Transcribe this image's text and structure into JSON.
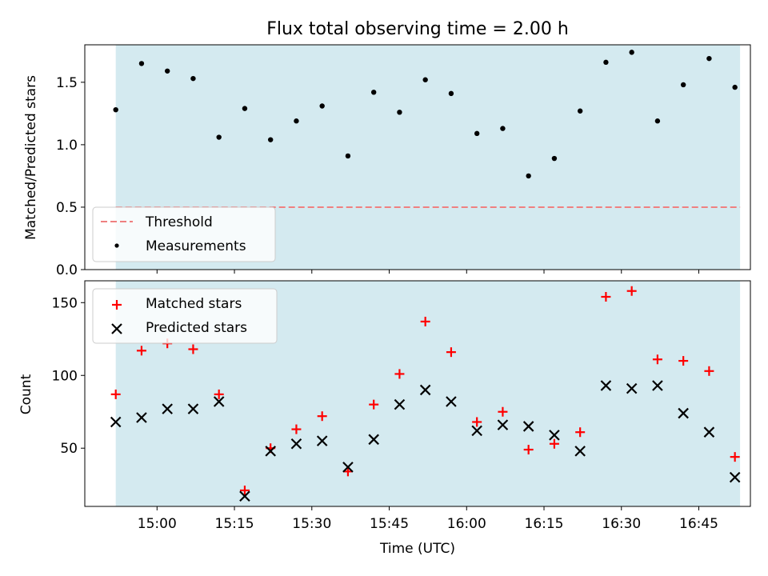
{
  "chart_data": [
    {
      "type": "scatter",
      "title": "Flux total observing time = 2.00 h",
      "xlabel": "",
      "ylabel": "Matched/Predicted stars",
      "ylim": [
        0,
        1.8
      ],
      "yticks": [
        "0.0",
        "0.5",
        "1.0",
        "1.5"
      ],
      "shaded_span": [
        "14:52",
        "16:53"
      ],
      "threshold": 0.5,
      "legend": {
        "position": "lower-left",
        "entries": [
          "Threshold",
          "Measurements"
        ]
      },
      "series": [
        {
          "name": "Measurements",
          "x": [
            "14:52",
            "14:57",
            "15:02",
            "15:07",
            "15:12",
            "15:17",
            "15:22",
            "15:27",
            "15:32",
            "15:37",
            "15:42",
            "15:47",
            "15:52",
            "15:57",
            "16:02",
            "16:07",
            "16:12",
            "16:17",
            "16:22",
            "16:27",
            "16:32",
            "16:37",
            "16:42",
            "16:47",
            "16:52"
          ],
          "values": [
            1.28,
            1.65,
            1.59,
            1.53,
            1.06,
            1.29,
            1.04,
            1.19,
            1.31,
            0.91,
            1.42,
            1.26,
            1.52,
            1.41,
            1.09,
            1.13,
            0.75,
            0.89,
            1.27,
            1.66,
            1.74,
            1.19,
            1.48,
            1.69,
            1.46
          ]
        }
      ]
    },
    {
      "type": "scatter",
      "title": "",
      "xlabel": "Time (UTC)",
      "ylabel": "Count",
      "ylim": [
        10,
        165
      ],
      "yticks": [
        "50",
        "100",
        "150"
      ],
      "xticks": [
        "15:00",
        "15:15",
        "15:30",
        "15:45",
        "16:00",
        "16:15",
        "16:30",
        "16:45"
      ],
      "xlim": [
        "14:46",
        "16:55"
      ],
      "legend": {
        "position": "top-left",
        "entries": [
          "Matched stars",
          "Predicted stars"
        ]
      },
      "series": [
        {
          "name": "Matched stars",
          "x": [
            "14:52",
            "14:57",
            "15:02",
            "15:07",
            "15:12",
            "15:17",
            "15:22",
            "15:27",
            "15:32",
            "15:37",
            "15:42",
            "15:47",
            "15:52",
            "15:57",
            "16:02",
            "16:07",
            "16:12",
            "16:17",
            "16:22",
            "16:27",
            "16:32",
            "16:37",
            "16:42",
            "16:47",
            "16:52"
          ],
          "values": [
            87,
            117,
            122,
            118,
            87,
            21,
            50,
            63,
            72,
            34,
            80,
            101,
            137,
            116,
            68,
            75,
            49,
            53,
            61,
            154,
            158,
            111,
            110,
            103,
            44
          ]
        },
        {
          "name": "Predicted stars",
          "x": [
            "14:52",
            "14:57",
            "15:02",
            "15:07",
            "15:12",
            "15:17",
            "15:22",
            "15:27",
            "15:32",
            "15:37",
            "15:42",
            "15:47",
            "15:52",
            "15:57",
            "16:02",
            "16:07",
            "16:12",
            "16:17",
            "16:22",
            "16:27",
            "16:32",
            "16:37",
            "16:42",
            "16:47",
            "16:52"
          ],
          "values": [
            68,
            71,
            77,
            77,
            82,
            17,
            48,
            53,
            55,
            37,
            56,
            80,
            90,
            82,
            62,
            66,
            65,
            59,
            48,
            93,
            91,
            93,
            74,
            61,
            30
          ]
        }
      ]
    }
  ],
  "colors": {
    "span_fill": "#d4eaf0",
    "threshold_line": "#ef8080",
    "measurement_point": "#000000",
    "matched_marker": "#ff0000",
    "predicted_marker": "#000000"
  }
}
